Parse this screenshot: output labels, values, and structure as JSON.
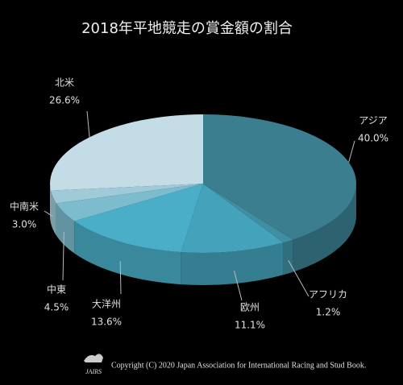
{
  "chart_data": {
    "type": "pie3d",
    "title": "2018年平地競走の賞金額の割合",
    "categories": [
      "アジア",
      "アフリカ",
      "欧州",
      "大洋州",
      "中東",
      "中南米",
      "北米"
    ],
    "values": [
      40.0,
      1.2,
      11.1,
      13.6,
      4.5,
      3.0,
      26.6
    ],
    "value_labels": [
      "40.0%",
      "1.2%",
      "11.1%",
      "13.6%",
      "4.5%",
      "3.0%",
      "26.6%"
    ],
    "colors": [
      "#3a7e90",
      "#3f8ea1",
      "#44a2ba",
      "#4aaec8",
      "#7cbccd",
      "#9fcbd9",
      "#c4dce6"
    ],
    "logo": "JAIRS",
    "source": "Copyright (C) 2020 Japan Association for International Racing and Stud Book."
  }
}
